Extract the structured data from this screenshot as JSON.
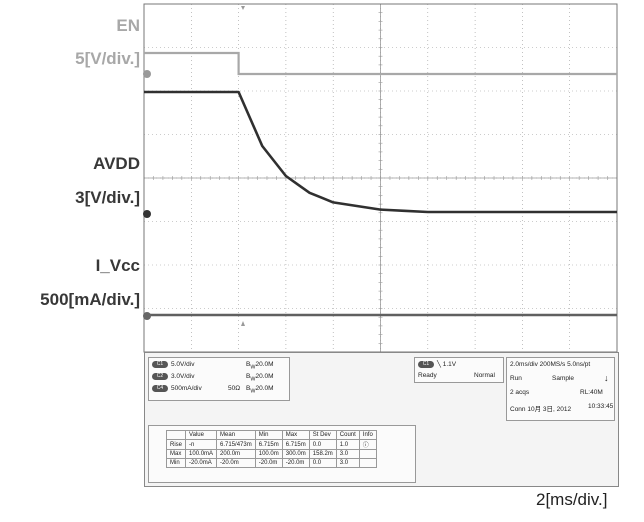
{
  "labels": {
    "en_name": "EN",
    "en_scale": "5[V/div.]",
    "avdd_name": "AVDD",
    "avdd_scale": "3[V/div.]",
    "ivcc_name": "I_Vcc",
    "ivcc_scale": "500[mA/div.]",
    "time_scale": "2[ms/div.]"
  },
  "colors": {
    "en_trace": "#a8a8a8",
    "avdd_trace": "#303030",
    "ivcc_trace": "#606060",
    "grid": "#9a9a9a",
    "label_dark": "#383838"
  },
  "chart_data": {
    "type": "line",
    "xlabel": "2[ms/div.]",
    "x_divisions": 10,
    "y_divisions": 8,
    "grid": true,
    "series": [
      {
        "name": "EN",
        "scale": "5[V/div.]",
        "x": [
          0,
          2,
          2,
          10
        ],
        "y": [
          1,
          1,
          0,
          0
        ]
      },
      {
        "name": "AVDD",
        "scale": "3[V/div.]",
        "x": [
          0,
          2,
          2.5,
          3,
          3.5,
          4,
          5,
          6,
          10
        ],
        "y": [
          1,
          1,
          0.55,
          0.3,
          0.16,
          0.08,
          0.02,
          0,
          0
        ]
      },
      {
        "name": "I_Vcc",
        "scale": "500[mA/div.]",
        "x": [
          0,
          10
        ],
        "y": [
          0,
          0
        ]
      }
    ]
  },
  "panel": {
    "channels": [
      {
        "id": "C1",
        "scale": "5.0V/div",
        "coupling": "",
        "bw": "20.0M"
      },
      {
        "id": "C2",
        "scale": "3.0V/div",
        "coupling": "",
        "bw": "20.0M"
      },
      {
        "id": "C4",
        "scale": "500mA/div",
        "coupling": "50Ω",
        "bw": "20.0M"
      }
    ],
    "trigger": {
      "ch": "C1",
      "level": "1.1V",
      "state": "Ready",
      "mode": "Normal"
    },
    "timebase": {
      "row1": "2.0ms/div  200MS/s     5.0ns/pt",
      "row2a": "Run",
      "row2b": "Sample",
      "row3a": "2 acqs",
      "row3b": "RL:40M",
      "row4a": "Conn  10月 3日, 2012",
      "row4b": "10:33:45"
    },
    "measure": {
      "headers": [
        "",
        "Value",
        "Mean",
        "Min",
        "Max",
        "St Dev",
        "Count",
        "Info"
      ],
      "rows": [
        [
          "Rise",
          "-n",
          "6.715/473m",
          "6.715m",
          "6.715m",
          "0.0",
          "1.0",
          ""
        ],
        [
          "Max",
          "100.0mA",
          "200.0m",
          "100.0m",
          "300.0m",
          "158.2m",
          "3.0",
          ""
        ],
        [
          "Min",
          "-20.0mA",
          "-20.0m",
          "-20.0m",
          "-20.0m",
          "0.0",
          "3.0",
          ""
        ]
      ]
    }
  }
}
